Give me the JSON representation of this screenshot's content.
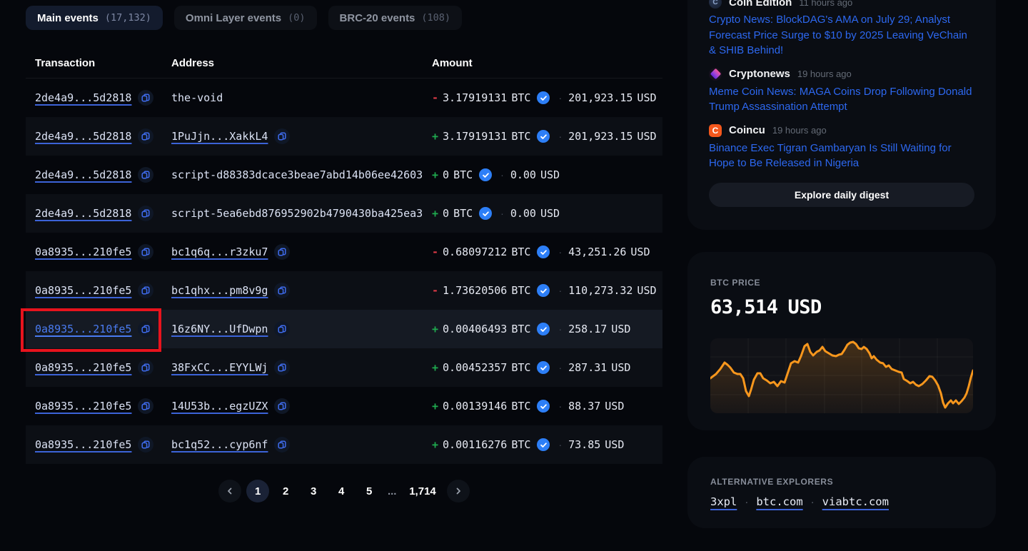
{
  "colors": {
    "accent_blue": "#2d7ff7",
    "link_blue": "#2d68f0",
    "bitcoin_orange": "#f8971d",
    "negative_red": "#dd3a46",
    "positive_green": "#1fab4f",
    "highlight_box_red": "#e8131d"
  },
  "tabs": [
    {
      "label": "Main events",
      "count": "(17,132)",
      "active": true
    },
    {
      "label": "Omni Layer events",
      "count": "(0)",
      "active": false
    },
    {
      "label": "BRC-20 events",
      "count": "(108)",
      "active": false
    }
  ],
  "table": {
    "headers": [
      "Transaction",
      "Address",
      "Amount"
    ],
    "rows": [
      {
        "transaction": "2de4a9...5d2818",
        "address": "the-void",
        "address_is_link": false,
        "address_has_copy": false,
        "sign": "-",
        "btc": "3.17919131",
        "unit": "BTC",
        "verified": true,
        "usd": "201,923.15",
        "usd_unit": "USD",
        "highlighted": false
      },
      {
        "transaction": "2de4a9...5d2818",
        "address": "1PuJjn...XakkL4",
        "address_is_link": true,
        "address_has_copy": true,
        "sign": "+",
        "btc": "3.17919131",
        "unit": "BTC",
        "verified": true,
        "usd": "201,923.15",
        "usd_unit": "USD",
        "highlighted": false
      },
      {
        "transaction": "2de4a9...5d2818",
        "address": "script-d88383dcace3beae7abd14b06ee42603",
        "address_is_link": false,
        "address_has_copy": false,
        "sign": "+",
        "btc": "0",
        "unit": "BTC",
        "verified": true,
        "usd": "0.00",
        "usd_unit": "USD",
        "highlighted": false
      },
      {
        "transaction": "2de4a9...5d2818",
        "address": "script-5ea6ebd876952902b4790430ba425ea3",
        "address_is_link": false,
        "address_has_copy": false,
        "sign": "+",
        "btc": "0",
        "unit": "BTC",
        "verified": true,
        "usd": "0.00",
        "usd_unit": "USD",
        "highlighted": false
      },
      {
        "transaction": "0a8935...210fe5",
        "address": "bc1q6q...r3zku7",
        "address_is_link": true,
        "address_has_copy": true,
        "sign": "-",
        "btc": "0.68097212",
        "unit": "BTC",
        "verified": true,
        "usd": "43,251.26",
        "usd_unit": "USD",
        "highlighted": false
      },
      {
        "transaction": "0a8935...210fe5",
        "address": "bc1qhx...pm8v9g",
        "address_is_link": true,
        "address_has_copy": true,
        "sign": "-",
        "btc": "1.73620506",
        "unit": "BTC",
        "verified": true,
        "usd": "110,273.32",
        "usd_unit": "USD",
        "highlighted": false
      },
      {
        "transaction": "0a8935...210fe5",
        "address": "16z6NY...UfDwpn",
        "address_is_link": true,
        "address_has_copy": true,
        "sign": "+",
        "btc": "0.00406493",
        "unit": "BTC",
        "verified": true,
        "usd": "258.17",
        "usd_unit": "USD",
        "highlighted": true
      },
      {
        "transaction": "0a8935...210fe5",
        "address": "38FxCC...EYYLWj",
        "address_is_link": true,
        "address_has_copy": true,
        "sign": "+",
        "btc": "0.00452357",
        "unit": "BTC",
        "verified": true,
        "usd": "287.31",
        "usd_unit": "USD",
        "highlighted": false
      },
      {
        "transaction": "0a8935...210fe5",
        "address": "14U53b...egzUZX",
        "address_is_link": true,
        "address_has_copy": true,
        "sign": "+",
        "btc": "0.00139146",
        "unit": "BTC",
        "verified": true,
        "usd": "88.37",
        "usd_unit": "USD",
        "highlighted": false
      },
      {
        "transaction": "0a8935...210fe5",
        "address": "bc1q52...cyp6nf",
        "address_is_link": true,
        "address_has_copy": true,
        "sign": "+",
        "btc": "0.00116276",
        "unit": "BTC",
        "verified": true,
        "usd": "73.85",
        "usd_unit": "USD",
        "highlighted": false
      }
    ]
  },
  "pagination": {
    "pages": [
      "1",
      "2",
      "3",
      "4",
      "5"
    ],
    "active_page": "1",
    "ellipsis": "...",
    "last_page": "1,714"
  },
  "news": {
    "items": [
      {
        "source": "Coin Edition",
        "icon": "coin-edition-logo",
        "time": "11 hours ago",
        "headline": "Crypto News: BlockDAG's AMA on July 29; Analyst Forecast Price Surge to $10 by 2025 Leaving VeChain & SHIB Behind!"
      },
      {
        "source": "Cryptonews",
        "icon": "cryptonews-logo",
        "time": "19 hours ago",
        "headline": "Meme Coin News: MAGA Coins Drop Following Donald Trump Assassination Attempt"
      },
      {
        "source": "Coincu",
        "icon": "coincu-logo",
        "time": "19 hours ago",
        "headline": "Binance Exec Tigran Gambaryan Is Still Waiting for Hope to Be Released in Nigeria"
      }
    ],
    "digest_label": "Explore daily digest"
  },
  "btc_price": {
    "label": "BTC PRICE",
    "value": "63,514",
    "unit": "USD",
    "chart_data": {
      "type": "line",
      "title": "BTC price sparkline",
      "line_color": "#f8971d",
      "area_fill": "rgba(248,151,29,0.22)",
      "grid": true,
      "xlim": [
        0,
        368
      ],
      "ylim": [
        0,
        105
      ],
      "points": [
        [
          0,
          49
        ],
        [
          8,
          55
        ],
        [
          14,
          62
        ],
        [
          20,
          71
        ],
        [
          24,
          68
        ],
        [
          28,
          64
        ],
        [
          33,
          57
        ],
        [
          38,
          55
        ],
        [
          42,
          55
        ],
        [
          46,
          49
        ],
        [
          50,
          31
        ],
        [
          54,
          24
        ],
        [
          57,
          33
        ],
        [
          61,
          47
        ],
        [
          66,
          56
        ],
        [
          70,
          56
        ],
        [
          74,
          49
        ],
        [
          79,
          46
        ],
        [
          84,
          42
        ],
        [
          89,
          44
        ],
        [
          94,
          38
        ],
        [
          99,
          45
        ],
        [
          104,
          43
        ],
        [
          108,
          55
        ],
        [
          113,
          70
        ],
        [
          118,
          73
        ],
        [
          123,
          71
        ],
        [
          127,
          80
        ],
        [
          132,
          94
        ],
        [
          136,
          97
        ],
        [
          140,
          86
        ],
        [
          144,
          81
        ],
        [
          149,
          86
        ],
        [
          153,
          88
        ],
        [
          157,
          93
        ],
        [
          161,
          87
        ],
        [
          166,
          84
        ],
        [
          171,
          81
        ],
        [
          176,
          80
        ],
        [
          180,
          82
        ],
        [
          184,
          83
        ],
        [
          188,
          89
        ],
        [
          192,
          96
        ],
        [
          196,
          99
        ],
        [
          200,
          100
        ],
        [
          204,
          97
        ],
        [
          208,
          91
        ],
        [
          212,
          90
        ],
        [
          215,
          93
        ],
        [
          219,
          90
        ],
        [
          223,
          84
        ],
        [
          226,
          77
        ],
        [
          229,
          80
        ],
        [
          233,
          75
        ],
        [
          238,
          71
        ],
        [
          242,
          70
        ],
        [
          246,
          65
        ],
        [
          250,
          67
        ],
        [
          254,
          62
        ],
        [
          259,
          60
        ],
        [
          264,
          58
        ],
        [
          268,
          57
        ],
        [
          271,
          48
        ],
        [
          276,
          45
        ],
        [
          280,
          42
        ],
        [
          284,
          44
        ],
        [
          288,
          40
        ],
        [
          292,
          38
        ],
        [
          297,
          41
        ],
        [
          302,
          46
        ],
        [
          307,
          52
        ],
        [
          311,
          51
        ],
        [
          315,
          46
        ],
        [
          319,
          39
        ],
        [
          323,
          28
        ],
        [
          326,
          15
        ],
        [
          329,
          8
        ],
        [
          333,
          14
        ],
        [
          337,
          18
        ],
        [
          340,
          14
        ],
        [
          344,
          18
        ],
        [
          348,
          13
        ],
        [
          352,
          17
        ],
        [
          356,
          22
        ],
        [
          359,
          28
        ],
        [
          362,
          38
        ],
        [
          365,
          50
        ],
        [
          368,
          60
        ]
      ]
    }
  },
  "explorers": {
    "label": "ALTERNATIVE EXPLORERS",
    "separator": "·",
    "links": [
      "3xpl",
      "btc.com",
      "viabtc.com"
    ]
  }
}
